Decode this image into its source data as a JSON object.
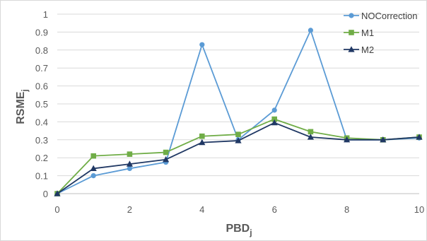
{
  "chart_data": {
    "type": "line",
    "title": "",
    "xlabel": "PBD",
    "xlabel_sub": "j",
    "ylabel": "RSME",
    "ylabel_sub": "j",
    "xlim": [
      0,
      10
    ],
    "ylim": [
      0,
      1
    ],
    "x_ticks": [
      "0",
      "2",
      "4",
      "6",
      "8",
      "10"
    ],
    "y_ticks": [
      "0",
      "0.1",
      "0.2",
      "0.3",
      "0.4",
      "0.5",
      "0.6",
      "0.7",
      "0.8",
      "0.9",
      "1"
    ],
    "grid": "horizontal",
    "legend_position": "top-right",
    "x": [
      0,
      1,
      2,
      3,
      4,
      5,
      6,
      7,
      8,
      9,
      10
    ],
    "series": [
      {
        "name": "NOCorrection",
        "color": "#5b9bd5",
        "marker": "circle",
        "values": [
          0.0,
          0.1,
          0.14,
          0.175,
          0.83,
          0.3,
          0.465,
          0.91,
          0.3,
          0.3,
          0.31
        ]
      },
      {
        "name": "M1",
        "color": "#70ad47",
        "marker": "square",
        "values": [
          0.0,
          0.21,
          0.22,
          0.23,
          0.32,
          0.33,
          0.415,
          0.345,
          0.31,
          0.3,
          0.315
        ]
      },
      {
        "name": "M2",
        "color": "#203864",
        "marker": "triangle",
        "values": [
          0.0,
          0.14,
          0.165,
          0.19,
          0.285,
          0.295,
          0.395,
          0.315,
          0.3,
          0.3,
          0.315
        ]
      }
    ]
  }
}
